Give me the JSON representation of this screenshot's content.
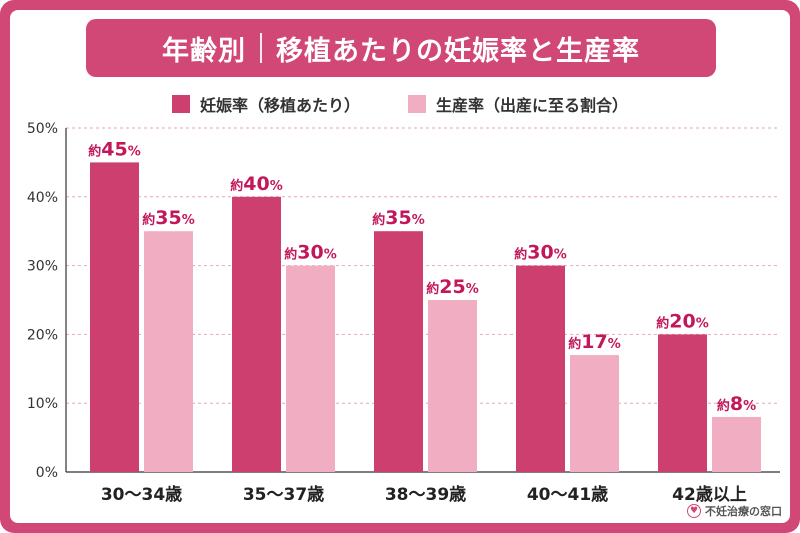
{
  "header": {
    "title_part1": "年齢別",
    "title_part2": "移植あたりの妊娠率と生産率"
  },
  "footer": {
    "brand": "不妊治療の窓口"
  },
  "colors": {
    "frame": "#d14775",
    "series_pregnancy": "#cc3f6e",
    "series_birth": "#f1aec3",
    "label": "#c2185b"
  },
  "chart_data": {
    "type": "bar",
    "categories": [
      "30～34歳",
      "35～37歳",
      "38～39歳",
      "40～41歳",
      "42歳以上"
    ],
    "series": [
      {
        "name": "妊娠率（移植あたり）",
        "values": [
          45,
          40,
          35,
          30,
          20
        ]
      },
      {
        "name": "生産率（出産に至る割合）",
        "values": [
          35,
          30,
          25,
          17,
          8
        ]
      }
    ],
    "value_prefix": "約",
    "value_suffix": "%",
    "yticks": [
      "0%",
      "10%",
      "20%",
      "30%",
      "40%",
      "50%"
    ],
    "ylim": [
      0,
      50
    ],
    "grid": true,
    "legend_position": "top-center"
  }
}
